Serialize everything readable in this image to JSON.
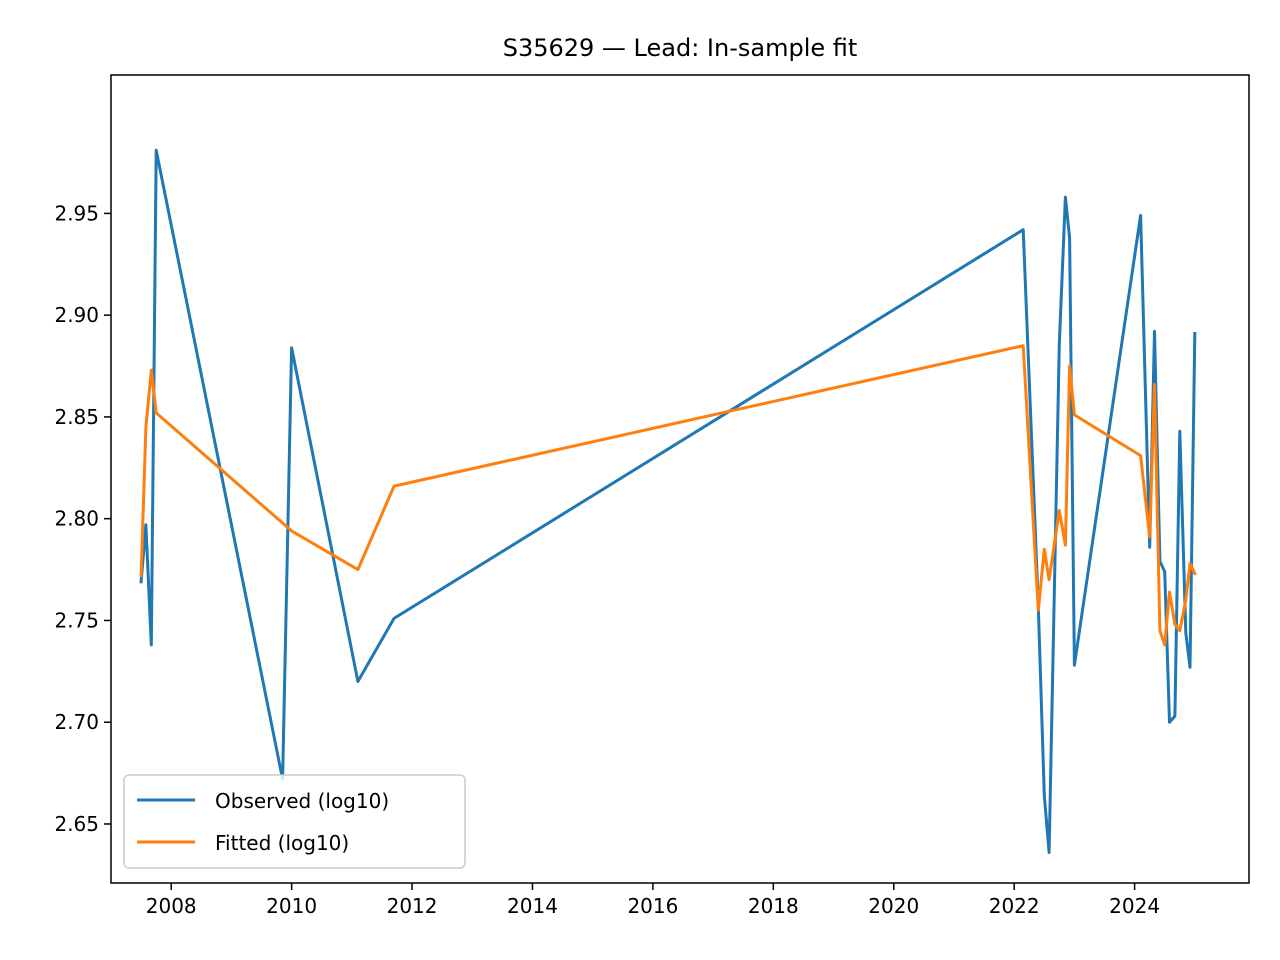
{
  "chart_data": {
    "type": "line",
    "title": "S35629 — Lead: In-sample fit",
    "xlabel": "",
    "ylabel": "",
    "xlim": [
      2007.0,
      2025.9
    ],
    "ylim": [
      2.621,
      3.018
    ],
    "x_ticks": [
      2008,
      2010,
      2012,
      2014,
      2016,
      2018,
      2020,
      2022,
      2024
    ],
    "x_tick_labels": [
      "2008",
      "2010",
      "2012",
      "2014",
      "2016",
      "2018",
      "2020",
      "2022",
      "2024"
    ],
    "y_ticks": [
      2.65,
      2.7,
      2.75,
      2.8,
      2.85,
      2.9,
      2.95
    ],
    "y_tick_labels": [
      "2.65",
      "2.70",
      "2.75",
      "2.80",
      "2.85",
      "2.90",
      "2.95"
    ],
    "grid": false,
    "legend_position": "lower-left",
    "series": [
      {
        "name": "Observed (log10)",
        "color": "#1f77b4",
        "x": [
          2007.5,
          2007.58,
          2007.67,
          2007.75,
          2009.85,
          2010.0,
          2011.1,
          2011.7,
          2022.15,
          2022.4,
          2022.5,
          2022.58,
          2022.75,
          2022.85,
          2022.92,
          2023.0,
          2024.1,
          2024.25,
          2024.33,
          2024.42,
          2024.5,
          2024.58,
          2024.67,
          2024.75,
          2024.85,
          2024.92,
          2025.0
        ],
        "y": [
          2.769,
          2.797,
          2.738,
          2.981,
          2.672,
          2.884,
          2.72,
          2.751,
          2.942,
          2.757,
          2.664,
          2.636,
          2.886,
          2.958,
          2.938,
          2.728,
          2.949,
          2.786,
          2.892,
          2.779,
          2.774,
          2.7,
          2.703,
          2.843,
          2.744,
          2.727,
          2.891
        ]
      },
      {
        "name": "Fitted (log10)",
        "color": "#ff7f0e",
        "x": [
          2007.5,
          2007.58,
          2007.67,
          2007.75,
          2010.0,
          2011.1,
          2011.7,
          2022.15,
          2022.4,
          2022.5,
          2022.58,
          2022.75,
          2022.85,
          2022.92,
          2023.0,
          2024.1,
          2024.25,
          2024.33,
          2024.42,
          2024.5,
          2024.58,
          2024.67,
          2024.75,
          2024.85,
          2024.92,
          2025.0
        ],
        "y": [
          2.772,
          2.845,
          2.873,
          2.852,
          2.794,
          2.775,
          2.816,
          2.885,
          2.755,
          2.785,
          2.77,
          2.804,
          2.787,
          2.875,
          2.851,
          2.831,
          2.791,
          2.866,
          2.745,
          2.738,
          2.764,
          2.748,
          2.745,
          2.76,
          2.778,
          2.773
        ]
      }
    ]
  }
}
